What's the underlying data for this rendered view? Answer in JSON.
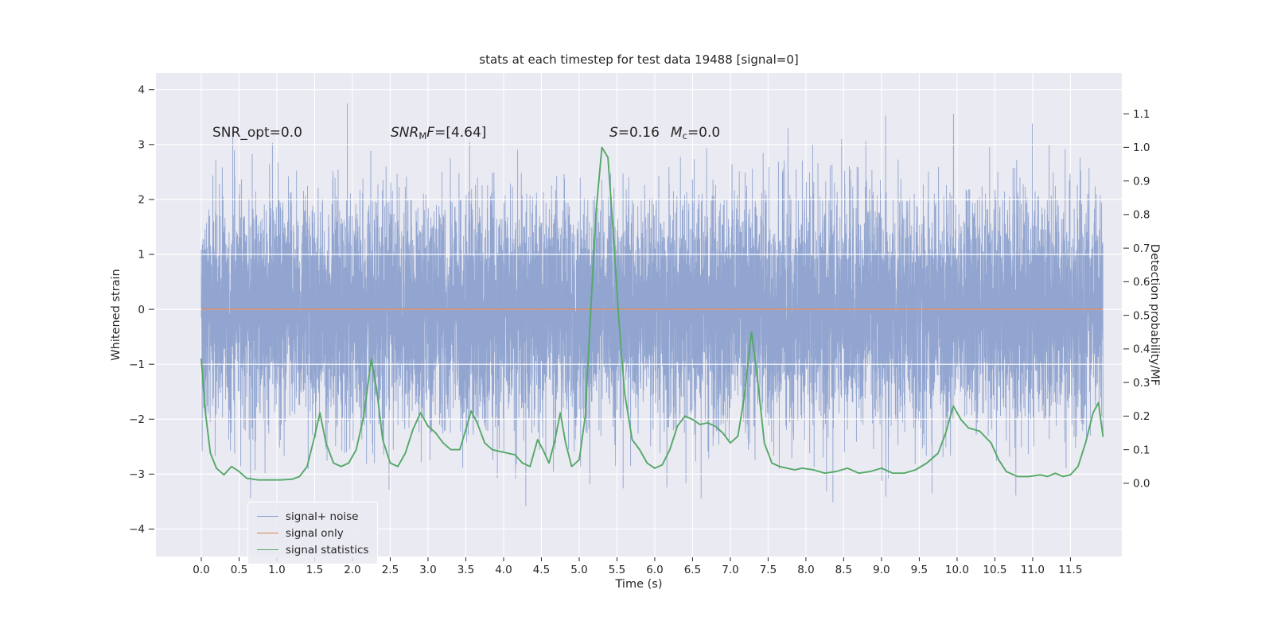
{
  "title": "stats at each timestep for test data 19488 [signal=0]",
  "annotations": {
    "snr_opt": "SNR_opt=0.0",
    "snr_mf_italic": "SNR",
    "snr_mf_sub": "M",
    "snr_mf_italic2": "F",
    "snr_mf_rest": "=[4.64]",
    "stat_s_italic": "S",
    "stat_s_rest": "=0.16",
    "stat_m_italic": "M",
    "stat_m_sub": "c",
    "stat_m_rest": "=0.0"
  },
  "chart_data": {
    "type": "line",
    "title": "stats at each timestep for test data 19488 [signal=0]",
    "xlabel": "Time (s)",
    "ylabel_left": "Whitened strain",
    "ylabel_right": "Detection probability/MF",
    "xlim": [
      -0.6,
      12.18
    ],
    "ylim_left": [
      -4.5,
      4.3
    ],
    "ylim_right": [
      -0.218,
      1.221
    ],
    "grid": true,
    "background": "#eaeaf2",
    "gridline_color": "#ffffff",
    "text_color": "#262626",
    "xtick_values": [
      0,
      0.5,
      1,
      1.5,
      2,
      2.5,
      3,
      3.5,
      4,
      4.5,
      5,
      5.5,
      6,
      6.5,
      7,
      7.5,
      8,
      8.5,
      9,
      9.5,
      10,
      10.5,
      11,
      11.5
    ],
    "xtick_labels": [
      "0.0",
      "0.5",
      "1.0",
      "1.5",
      "2.0",
      "2.5",
      "3.0",
      "3.5",
      "4.0",
      "4.5",
      "5.0",
      "5.5",
      "6.0",
      "6.5",
      "7.0",
      "7.5",
      "8.0",
      "8.5",
      "9.0",
      "9.5",
      "10.0",
      "10.5",
      "11.0",
      "11.5"
    ],
    "ytick_left_values": [
      -4,
      -3,
      -2,
      -1,
      0,
      1,
      2,
      3,
      4
    ],
    "ytick_left_labels": [
      "−4",
      "−3",
      "−2",
      "−1",
      "0",
      "1",
      "2",
      "3",
      "4"
    ],
    "ytick_right_values": [
      0,
      0.1,
      0.2,
      0.3,
      0.4,
      0.5,
      0.6,
      0.7,
      0.8,
      0.9,
      1.0,
      1.1
    ],
    "ytick_right_labels": [
      "0.0",
      "0.1",
      "0.2",
      "0.3",
      "0.4",
      "0.5",
      "0.6",
      "0.7",
      "0.8",
      "0.9",
      "1.0",
      "1.1"
    ],
    "series": [
      {
        "name": "signal+ noise",
        "kind": "noise",
        "axis": "left",
        "color": "#8ca1cd",
        "mean": 0,
        "std": 1.0,
        "seed": 19488,
        "samples": 11000,
        "t_start": 0,
        "t_end": 11.93,
        "clip": 4.22
      },
      {
        "name": "signal only",
        "kind": "hline",
        "axis": "left",
        "color": "#dd8452",
        "y": 0,
        "t_start": 0,
        "t_end": 11.93
      },
      {
        "name": "signal statistics",
        "kind": "line",
        "axis": "right",
        "color": "#55a868",
        "points": [
          [
            0.0,
            0.37
          ],
          [
            0.05,
            0.22
          ],
          [
            0.12,
            0.09
          ],
          [
            0.2,
            0.045
          ],
          [
            0.3,
            0.025
          ],
          [
            0.4,
            0.05
          ],
          [
            0.5,
            0.035
          ],
          [
            0.6,
            0.015
          ],
          [
            0.75,
            0.01
          ],
          [
            0.9,
            0.01
          ],
          [
            1.05,
            0.01
          ],
          [
            1.2,
            0.012
          ],
          [
            1.3,
            0.02
          ],
          [
            1.4,
            0.05
          ],
          [
            1.5,
            0.14
          ],
          [
            1.57,
            0.21
          ],
          [
            1.65,
            0.12
          ],
          [
            1.75,
            0.06
          ],
          [
            1.85,
            0.05
          ],
          [
            1.95,
            0.06
          ],
          [
            2.05,
            0.1
          ],
          [
            2.15,
            0.2
          ],
          [
            2.25,
            0.37
          ],
          [
            2.32,
            0.28
          ],
          [
            2.4,
            0.13
          ],
          [
            2.5,
            0.06
          ],
          [
            2.6,
            0.05
          ],
          [
            2.7,
            0.09
          ],
          [
            2.8,
            0.16
          ],
          [
            2.9,
            0.21
          ],
          [
            3.0,
            0.17
          ],
          [
            3.1,
            0.15
          ],
          [
            3.2,
            0.12
          ],
          [
            3.3,
            0.1
          ],
          [
            3.42,
            0.1
          ],
          [
            3.5,
            0.16
          ],
          [
            3.57,
            0.215
          ],
          [
            3.65,
            0.18
          ],
          [
            3.75,
            0.12
          ],
          [
            3.85,
            0.1
          ],
          [
            3.95,
            0.095
          ],
          [
            4.05,
            0.09
          ],
          [
            4.15,
            0.085
          ],
          [
            4.25,
            0.06
          ],
          [
            4.35,
            0.05
          ],
          [
            4.45,
            0.13
          ],
          [
            4.52,
            0.1
          ],
          [
            4.6,
            0.06
          ],
          [
            4.68,
            0.13
          ],
          [
            4.75,
            0.21
          ],
          [
            4.82,
            0.12
          ],
          [
            4.9,
            0.05
          ],
          [
            5.0,
            0.07
          ],
          [
            5.08,
            0.2
          ],
          [
            5.15,
            0.5
          ],
          [
            5.22,
            0.8
          ],
          [
            5.3,
            1.0
          ],
          [
            5.38,
            0.97
          ],
          [
            5.45,
            0.75
          ],
          [
            5.52,
            0.5
          ],
          [
            5.6,
            0.27
          ],
          [
            5.7,
            0.13
          ],
          [
            5.8,
            0.1
          ],
          [
            5.9,
            0.06
          ],
          [
            6.0,
            0.045
          ],
          [
            6.1,
            0.055
          ],
          [
            6.2,
            0.1
          ],
          [
            6.3,
            0.17
          ],
          [
            6.4,
            0.2
          ],
          [
            6.5,
            0.19
          ],
          [
            6.6,
            0.175
          ],
          [
            6.7,
            0.18
          ],
          [
            6.8,
            0.17
          ],
          [
            6.9,
            0.15
          ],
          [
            7.0,
            0.12
          ],
          [
            7.1,
            0.14
          ],
          [
            7.18,
            0.25
          ],
          [
            7.28,
            0.45
          ],
          [
            7.35,
            0.33
          ],
          [
            7.45,
            0.12
          ],
          [
            7.55,
            0.06
          ],
          [
            7.65,
            0.05
          ],
          [
            7.75,
            0.045
          ],
          [
            7.85,
            0.04
          ],
          [
            7.95,
            0.045
          ],
          [
            8.1,
            0.04
          ],
          [
            8.25,
            0.03
          ],
          [
            8.4,
            0.035
          ],
          [
            8.55,
            0.045
          ],
          [
            8.7,
            0.03
          ],
          [
            8.85,
            0.035
          ],
          [
            9.0,
            0.045
          ],
          [
            9.15,
            0.03
          ],
          [
            9.3,
            0.03
          ],
          [
            9.45,
            0.04
          ],
          [
            9.6,
            0.06
          ],
          [
            9.75,
            0.09
          ],
          [
            9.85,
            0.15
          ],
          [
            9.95,
            0.23
          ],
          [
            10.05,
            0.19
          ],
          [
            10.15,
            0.165
          ],
          [
            10.3,
            0.155
          ],
          [
            10.45,
            0.12
          ],
          [
            10.55,
            0.07
          ],
          [
            10.65,
            0.035
          ],
          [
            10.8,
            0.02
          ],
          [
            10.95,
            0.02
          ],
          [
            11.1,
            0.025
          ],
          [
            11.2,
            0.02
          ],
          [
            11.3,
            0.03
          ],
          [
            11.4,
            0.02
          ],
          [
            11.5,
            0.025
          ],
          [
            11.6,
            0.05
          ],
          [
            11.7,
            0.12
          ],
          [
            11.8,
            0.21
          ],
          [
            11.87,
            0.24
          ],
          [
            11.93,
            0.14
          ]
        ]
      }
    ],
    "legend": {
      "position": "lower left",
      "entries": [
        {
          "label": "signal+ noise",
          "color": "#8ca1cd"
        },
        {
          "label": "signal only",
          "color": "#dd8452"
        },
        {
          "label": "signal statistics",
          "color": "#55a868"
        }
      ]
    }
  }
}
